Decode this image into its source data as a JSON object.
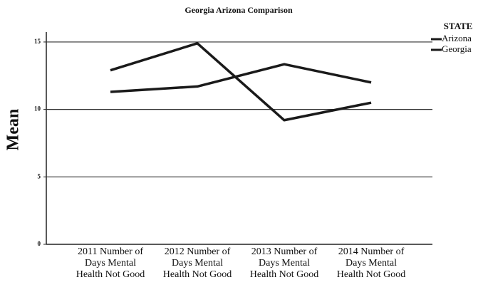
{
  "chart_data": {
    "type": "line",
    "title": "Georgia Arizona Comparison",
    "ylabel": "Mean",
    "categories": [
      "2011 Number of Days Mental Health Not Good",
      "2012 Number of Days Mental Health Not Good",
      "2013 Number of Days Mental Health Not Good",
      "2014 Number of Days Mental Health Not Good"
    ],
    "series": [
      {
        "name": "Arizona",
        "color": "#1a1a1a",
        "values": [
          12.9,
          14.9,
          9.2,
          10.5
        ]
      },
      {
        "name": "Georgia",
        "color": "#1a1a1a",
        "values": [
          11.3,
          11.7,
          13.35,
          12.0
        ]
      }
    ],
    "legend_title": "STATE",
    "ylim": [
      0,
      16
    ],
    "yticks": [
      0,
      5,
      10,
      15
    ],
    "grid": true,
    "legend": "right"
  }
}
